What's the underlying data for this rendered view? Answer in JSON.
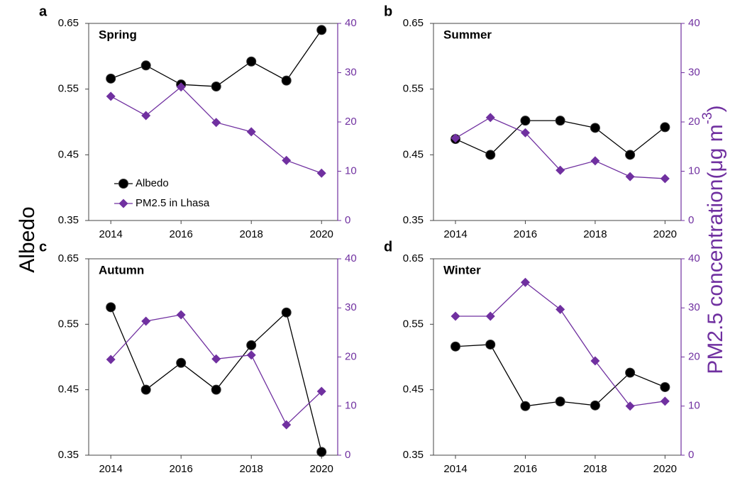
{
  "chart_data": [
    {
      "type": "line",
      "label": "a",
      "title": "Spring",
      "x": [
        2014,
        2015,
        2016,
        2017,
        2018,
        2019,
        2020
      ],
      "xlim": [
        2013.37,
        2020.46
      ],
      "xticks": [
        2014,
        2016,
        2018,
        2020
      ],
      "ylim": [
        0.35,
        0.65
      ],
      "yticks": [
        0.35,
        0.45,
        0.55,
        0.65
      ],
      "y2lim": [
        0,
        40
      ],
      "y2ticks": [
        0,
        10,
        20,
        30,
        40
      ],
      "legend": "lower left",
      "series": [
        {
          "name": "Albedo",
          "color": "#000000",
          "marker": "circle",
          "values": [
            0.566,
            0.586,
            0.557,
            0.554,
            0.592,
            0.563,
            0.64
          ]
        },
        {
          "name": "PM2.5 in Lhasa",
          "color": "#7030a0",
          "marker": "diamond",
          "axis": "y2",
          "values": [
            25.2,
            21.3,
            27.1,
            19.9,
            18.0,
            12.2,
            9.6
          ]
        }
      ]
    },
    {
      "type": "line",
      "label": "b",
      "title": "Summer",
      "x": [
        2014,
        2015,
        2016,
        2017,
        2018,
        2019,
        2020
      ],
      "xlim": [
        2013.37,
        2020.46
      ],
      "xticks": [
        2014,
        2016,
        2018,
        2020
      ],
      "ylim": [
        0.35,
        0.65
      ],
      "yticks": [
        0.35,
        0.45,
        0.55,
        0.65
      ],
      "y2lim": [
        0,
        40
      ],
      "y2ticks": [
        0,
        10,
        20,
        30,
        40
      ],
      "series": [
        {
          "color": "#000000",
          "marker": "circle",
          "values": [
            0.474,
            0.45,
            0.502,
            0.502,
            0.491,
            0.45,
            0.492
          ]
        },
        {
          "color": "#7030a0",
          "marker": "diamond",
          "axis": "y2",
          "values": [
            16.7,
            20.9,
            17.8,
            10.2,
            12.1,
            8.9,
            8.5
          ]
        }
      ]
    },
    {
      "type": "line",
      "label": "c",
      "title": "Autumn",
      "x": [
        2014,
        2015,
        2016,
        2017,
        2018,
        2019,
        2020
      ],
      "xlim": [
        2013.37,
        2020.46
      ],
      "xticks": [
        2014,
        2016,
        2018,
        2020
      ],
      "ylim": [
        0.35,
        0.65
      ],
      "yticks": [
        0.35,
        0.45,
        0.55,
        0.65
      ],
      "y2lim": [
        0,
        40
      ],
      "y2ticks": [
        0,
        10,
        20,
        30,
        40
      ],
      "series": [
        {
          "color": "#000000",
          "marker": "circle",
          "values": [
            0.576,
            0.45,
            0.491,
            0.45,
            0.518,
            0.568,
            0.355
          ]
        },
        {
          "color": "#7030a0",
          "marker": "diamond",
          "axis": "y2",
          "values": [
            19.5,
            27.3,
            28.6,
            19.6,
            20.4,
            6.2,
            13.0
          ]
        }
      ]
    },
    {
      "type": "line",
      "label": "d",
      "title": "Winter",
      "x": [
        2014,
        2015,
        2016,
        2017,
        2018,
        2019,
        2020
      ],
      "xlim": [
        2013.37,
        2020.46
      ],
      "xticks": [
        2014,
        2016,
        2018,
        2020
      ],
      "ylim": [
        0.35,
        0.65
      ],
      "yticks": [
        0.35,
        0.45,
        0.55,
        0.65
      ],
      "y2lim": [
        0,
        40
      ],
      "y2ticks": [
        0,
        10,
        20,
        30,
        40
      ],
      "series": [
        {
          "color": "#000000",
          "marker": "circle",
          "values": [
            0.516,
            0.519,
            0.425,
            0.432,
            0.426,
            0.476,
            0.454
          ]
        },
        {
          "color": "#7030a0",
          "marker": "diamond",
          "axis": "y2",
          "values": [
            28.3,
            28.3,
            35.2,
            29.7,
            19.2,
            10.0,
            11.0
          ]
        }
      ]
    }
  ],
  "y_label": "Albedo",
  "y2_label": [
    "PM2.5 concentration(μg m",
    "-3",
    ")"
  ]
}
